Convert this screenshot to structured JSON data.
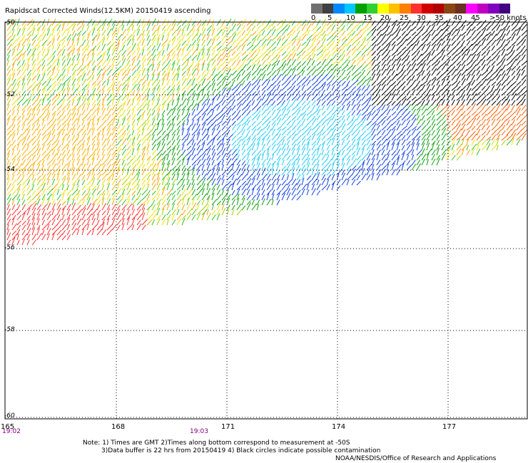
{
  "title": "Rapidscat Corrected Winds(12.5KM) 20150419 ascending",
  "legend": {
    "labels": [
      "0",
      "5",
      "10",
      "15",
      "20",
      "25",
      "30",
      "35",
      "40",
      "45",
      ">50 knots"
    ],
    "colors": [
      "#707070",
      "#404040",
      "#0088ff",
      "#00c8ff",
      "#00a000",
      "#30d030",
      "#ffff00",
      "#ffc000",
      "#ff8000",
      "#ff3030",
      "#d00000",
      "#b00000",
      "#8b4513",
      "#6b3020",
      "#ff00ff",
      "#c000c0",
      "#8000c0",
      "#400080"
    ]
  },
  "axes": {
    "lat_labels": [
      "-50",
      "-52",
      "-54",
      "-56",
      "-58",
      "-60"
    ],
    "lon_labels": [
      "165",
      "168",
      "171",
      "174",
      "177"
    ]
  },
  "times": [
    "19:02",
    "19:03"
  ],
  "notes": {
    "line1": "Note: 1) Times are GMT 2)Times along bottom correspond to measurement at -50S",
    "line2": "3)Data buffer is 22 hrs from 20150419 4) Black circles indicate possible contamination",
    "line3": "NOAA/NESDIS/Office of Research and Applications"
  }
}
